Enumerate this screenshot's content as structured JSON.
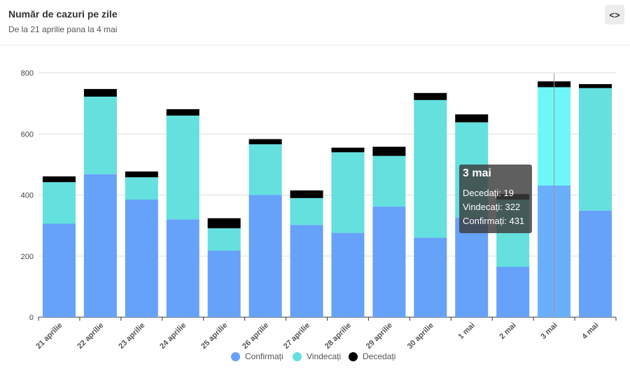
{
  "header": {
    "title": "Număr de cazuri pe zile",
    "subtitle": "De la 21 aprilie pana la 4 mai",
    "code_button_icon": "code-icon",
    "code_button_label": "<>"
  },
  "colors": {
    "confirmati": "#66a1fa",
    "vindecati": "#64e0de",
    "decedati": "#000000",
    "highlight_confirmati": "#6aaffc",
    "highlight_vindecati": "#6ef7f8"
  },
  "chart_data": {
    "type": "bar",
    "stacked": true,
    "categories": [
      "21 aprilie",
      "22 aprilie",
      "23 aprilie",
      "24 aprilie",
      "25 aprilie",
      "26 aprilie",
      "27 aprilie",
      "28 aprilie",
      "29 aprilie",
      "30 aprilie",
      "1 mai",
      "2 mai",
      "3 mai",
      "4 mai"
    ],
    "series": [
      {
        "name": "Confirmați",
        "values": [
          306,
          468,
          385,
          320,
          218,
          400,
          302,
          276,
          362,
          260,
          326,
          165,
          431,
          349
        ]
      },
      {
        "name": "Vindecați",
        "values": [
          136,
          254,
          73,
          340,
          73,
          166,
          88,
          264,
          166,
          451,
          312,
          220,
          322,
          401
        ]
      },
      {
        "name": "Decedați",
        "values": [
          19,
          25,
          19,
          21,
          33,
          17,
          25,
          15,
          30,
          23,
          26,
          18,
          19,
          13
        ]
      }
    ],
    "ylim": [
      0,
      800
    ],
    "yticks": [
      0,
      200,
      400,
      600,
      800
    ],
    "grid": true,
    "legend": "bottom",
    "highlighted_index": 12,
    "tooltip": {
      "title": "3 mai",
      "rows": [
        "Decedați: 19",
        "Vindecați: 322",
        "Confirmați: 431"
      ]
    }
  }
}
